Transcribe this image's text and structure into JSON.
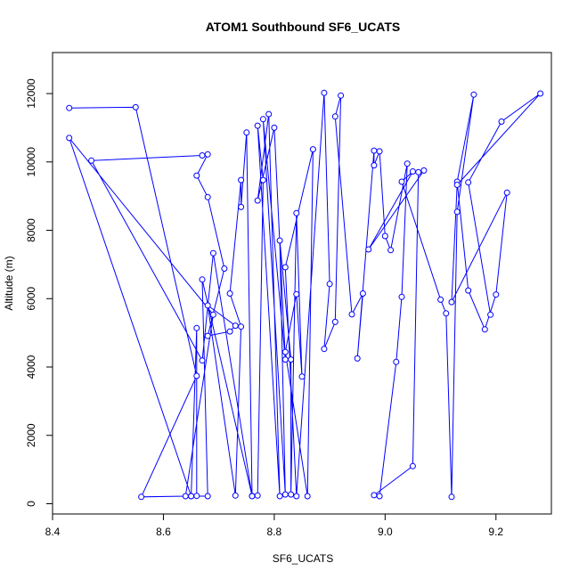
{
  "chart_data": {
    "type": "line",
    "title": "ATOM1 Southbound SF6_UCATS",
    "xlabel": "SF6_UCATS",
    "ylabel": "Altitude (m)",
    "xlim": [
      8.4,
      9.3
    ],
    "ylim": [
      -300,
      13200
    ],
    "x_ticks": [
      8.4,
      8.6,
      8.8,
      9.0,
      9.2
    ],
    "y_ticks": [
      0,
      2000,
      4000,
      6000,
      8000,
      10000,
      12000
    ],
    "x_tick_labels": [
      "8.4",
      "8.6",
      "8.8",
      "9.0",
      "9.2"
    ],
    "y_tick_labels": [
      "0",
      "2000",
      "4000",
      "6000",
      "8000",
      "10000",
      "12000"
    ],
    "grid": false,
    "line_color": "#0000ff",
    "markers": "open-circle",
    "series": [
      {
        "x": [
          8.43,
          8.55,
          8.66,
          8.56,
          8.64,
          8.69,
          8.43,
          8.65,
          8.66,
          8.66,
          8.65,
          8.68,
          8.67,
          8.76,
          8.69,
          8.67,
          8.47,
          8.67,
          8.68,
          8.66,
          8.68,
          8.71,
          8.68,
          8.72,
          8.73,
          8.68,
          8.73,
          8.74,
          8.72,
          8.74,
          8.74,
          8.75,
          8.76,
          8.77,
          8.78,
          8.77,
          8.81,
          8.79,
          8.77,
          8.8,
          8.82,
          8.78,
          8.82,
          8.81,
          8.83,
          8.83,
          8.84,
          8.85,
          8.84,
          8.82,
          8.86,
          8.87,
          8.82,
          8.84,
          8.89,
          8.9,
          8.89,
          8.91,
          8.92,
          8.91,
          8.94,
          8.96,
          8.95,
          8.98,
          8.98,
          8.99,
          9.0,
          9.01,
          9.04,
          9.03,
          9.02,
          8.99,
          8.98,
          9.05,
          9.06,
          9.07,
          8.97,
          9.05,
          9.03,
          9.1,
          9.11,
          9.12,
          9.13,
          9.16,
          9.13,
          9.15,
          9.18,
          9.2,
          9.22,
          9.12,
          9.13,
          9.28,
          9.21,
          9.15,
          9.19
        ],
        "y": [
          11580,
          11600,
          3740,
          200,
          220,
          5530,
          10700,
          220,
          5140,
          230,
          220,
          220,
          6560,
          230,
          7330,
          4190,
          10040,
          10190,
          10220,
          9600,
          8970,
          6880,
          4910,
          5040,
          5210,
          5800,
          240,
          5180,
          6150,
          9470,
          8680,
          10860,
          220,
          240,
          9470,
          11060,
          220,
          11400,
          8870,
          11000,
          4220,
          11250,
          270,
          7700,
          4220,
          270,
          8500,
          3720,
          6130,
          4440,
          220,
          10370,
          6920,
          220,
          12020,
          6430,
          4530,
          5320,
          11940,
          11330,
          5540,
          6150,
          4250,
          10330,
          9900,
          10310,
          7830,
          7420,
          9950,
          6050,
          4150,
          220,
          250,
          1100,
          9700,
          9750,
          7440,
          9720,
          9420,
          5970,
          5570,
          200,
          8540,
          11970,
          9420,
          6240,
          5100,
          6120,
          9100,
          5900,
          9330,
          12000,
          11180,
          9400,
          5530
        ]
      }
    ]
  }
}
